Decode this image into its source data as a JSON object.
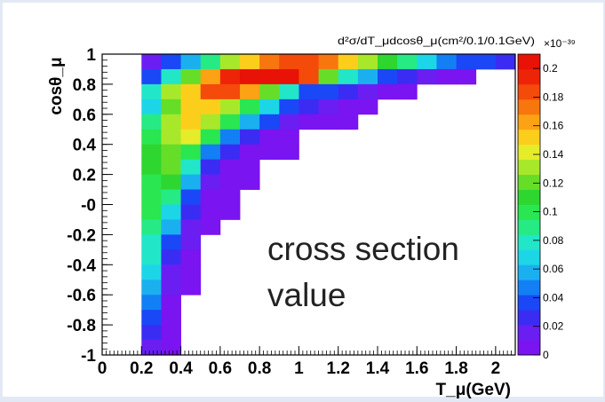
{
  "chart_data": {
    "type": "heatmap",
    "xlabel": "T_μ(GeV)",
    "ylabel": "cosθ_μ",
    "z_title": "d²σ/dT_μdcosθ_μ(cm²/0.1/0.1GeV)",
    "z_exponent": "×10⁻³⁹",
    "annotation_line1": "cross section",
    "annotation_line2": "value",
    "xlim": [
      0,
      2.1
    ],
    "ylim": [
      -1,
      1
    ],
    "zlim": [
      0,
      0.21
    ],
    "x_ticks": [
      "0",
      "0.2",
      "0.4",
      "0.6",
      "0.8",
      "1",
      "1.2",
      "1.4",
      "1.6",
      "1.8",
      "2"
    ],
    "y_ticks": [
      "-1",
      "-0.8",
      "-0.6",
      "-0.4",
      "-0.2",
      "-0",
      "0.2",
      "0.4",
      "0.6",
      "0.8",
      "1"
    ],
    "z_ticks": [
      "0",
      "0.02",
      "0.04",
      "0.06",
      "0.08",
      "0.1",
      "0.12",
      "0.14",
      "0.16",
      "0.18",
      "0.2"
    ],
    "x_bin_width": 0.1,
    "y_bin_width": 0.1,
    "row_cos_theta_low": [
      0.9,
      0.8,
      0.7,
      0.6,
      0.5,
      0.4,
      0.3,
      0.2,
      0.1,
      0.0,
      -0.1,
      -0.2,
      -0.3,
      -0.4,
      -0.5,
      -0.6,
      -0.7,
      -0.8,
      -0.9,
      -1.0
    ],
    "cells_start_T": 0.2,
    "z_values": [
      [
        0.02,
        0.04,
        0.055,
        0.085,
        0.135,
        0.155,
        0.175,
        0.18,
        0.18,
        0.17,
        0.155,
        0.135,
        0.11,
        0.085,
        0.065,
        0.05,
        0.04,
        0.035,
        0.03
      ],
      [
        0.035,
        0.08,
        0.12,
        0.16,
        0.19,
        0.205,
        0.2,
        0.205,
        0.18,
        0.12,
        0.08,
        0.055,
        0.04,
        0.025,
        0.015,
        0.01,
        0.01
      ],
      [
        0.075,
        0.13,
        0.15,
        0.18,
        0.18,
        0.16,
        0.12,
        0.08,
        0.04,
        0.035,
        0.025,
        0.015,
        0.01,
        0.008
      ],
      [
        0.07,
        0.12,
        0.155,
        0.15,
        0.13,
        0.1,
        0.07,
        0.04,
        0.025,
        0.015,
        0.01,
        0.008
      ],
      [
        0.09,
        0.13,
        0.15,
        0.13,
        0.1,
        0.06,
        0.04,
        0.02,
        0.01,
        0.008,
        0.005
      ],
      [
        0.1,
        0.13,
        0.14,
        0.1,
        0.05,
        0.03,
        0.01,
        0.008
      ],
      [
        0.11,
        0.125,
        0.1,
        0.05,
        0.03,
        0.01,
        0.008,
        0.005
      ],
      [
        0.11,
        0.12,
        0.08,
        0.03,
        0.01,
        0.005
      ],
      [
        0.1,
        0.11,
        0.06,
        0.015,
        0.01,
        0.005
      ],
      [
        0.1,
        0.09,
        0.04,
        0.01,
        0.008
      ],
      [
        0.1,
        0.07,
        0.03,
        0.01,
        0.008
      ],
      [
        0.09,
        0.06,
        0.02,
        0.01
      ],
      [
        0.08,
        0.04,
        0.015
      ],
      [
        0.08,
        0.03,
        0.01
      ],
      [
        0.07,
        0.02,
        0.01
      ],
      [
        0.055,
        0.015,
        0.01
      ],
      [
        0.05,
        0.01
      ],
      [
        0.035,
        0.008
      ],
      [
        0.025,
        0.005
      ],
      [
        0.02,
        0.005
      ]
    ]
  }
}
